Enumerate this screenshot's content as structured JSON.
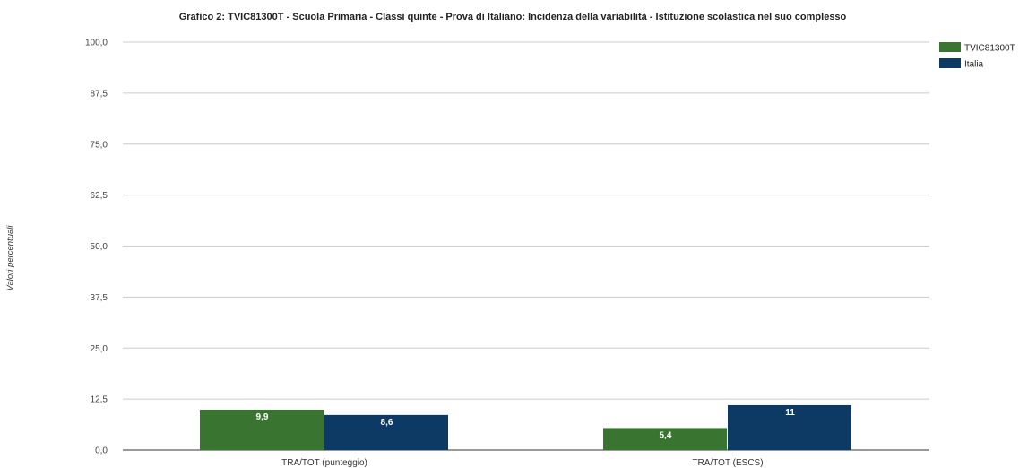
{
  "chart_data": {
    "type": "bar",
    "title": "Grafico 2: TVIC81300T - Scuola Primaria - Classi quinte - Prova di Italiano: Incidenza della variabilità - Istituzione scolastica nel suo complesso",
    "xlabel": "",
    "ylabel": "Valori percentuali",
    "ylim": [
      0,
      100
    ],
    "yticks": [
      "0,0",
      "12,5",
      "25,0",
      "37,5",
      "50,0",
      "62,5",
      "75,0",
      "87,5",
      "100,0"
    ],
    "categories": [
      "TRA/TOT (punteggio)",
      "TRA/TOT (ESCS)"
    ],
    "series": [
      {
        "name": "TVIC81300T",
        "color": "#3a7431",
        "values": [
          9.9,
          5.4
        ],
        "labels": [
          "9,9",
          "5,4"
        ]
      },
      {
        "name": "Italia",
        "color": "#0d3a64",
        "values": [
          8.6,
          11
        ],
        "labels": [
          "8,6",
          "11"
        ]
      }
    ],
    "grid": true,
    "legend_position": "top-right"
  }
}
